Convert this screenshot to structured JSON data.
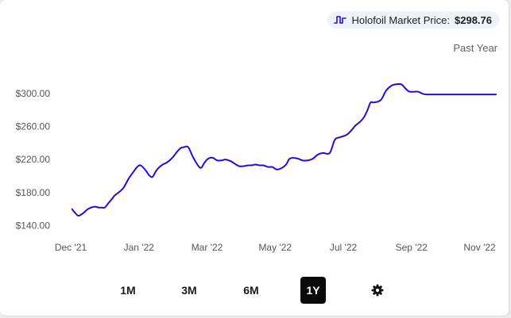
{
  "legend": {
    "label": "Holofoil Market Price:",
    "price": "$298.76",
    "icon": "line-chart-icon"
  },
  "period_label": "Past Year",
  "range_buttons": [
    {
      "label": "1M",
      "active": false
    },
    {
      "label": "3M",
      "active": false
    },
    {
      "label": "6M",
      "active": false
    },
    {
      "label": "1Y",
      "active": true
    }
  ],
  "settings_icon": "gear-icon",
  "colors": {
    "line": "#2a0ad6",
    "active_button_bg": "#0a0a0a",
    "legend_bg": "#eef2fb"
  },
  "chart_data": {
    "type": "line",
    "title": "",
    "xlabel": "",
    "ylabel": "",
    "y_ticks": [
      {
        "value": 140,
        "label": "$140.00"
      },
      {
        "value": 180,
        "label": "$180.00"
      },
      {
        "value": 220,
        "label": "$220.00"
      },
      {
        "value": 260,
        "label": "$260.00"
      },
      {
        "value": 300,
        "label": "$300.00"
      }
    ],
    "x_ticks": [
      {
        "value": 0,
        "label": "Dec '21"
      },
      {
        "value": 2,
        "label": "Jan '22"
      },
      {
        "value": 4,
        "label": "Mar '22"
      },
      {
        "value": 6,
        "label": "May '22"
      },
      {
        "value": 8,
        "label": "Jul '22"
      },
      {
        "value": 10,
        "label": "Sep '22"
      },
      {
        "value": 12,
        "label": "Nov '22"
      }
    ],
    "xlim": [
      0,
      12.5
    ],
    "ylim": [
      132,
      318
    ],
    "grid": false,
    "series": [
      {
        "x": [
          0.04,
          0.14,
          0.23,
          0.36,
          0.5,
          0.68,
          0.82,
          0.9,
          1.0,
          1.1,
          1.2,
          1.3,
          1.4,
          1.55,
          1.7,
          1.82,
          1.95,
          2.05,
          2.2,
          2.3,
          2.4,
          2.5,
          2.58,
          2.7,
          2.8,
          2.9,
          3.0,
          3.13,
          3.23,
          3.32,
          3.45,
          3.6,
          3.8,
          3.92,
          4.0,
          4.08,
          4.18,
          4.3,
          4.42,
          4.55,
          4.7,
          4.85,
          4.95,
          5.07,
          5.2,
          5.3,
          5.42,
          5.55,
          5.65,
          5.8,
          5.92,
          6.05,
          6.2,
          6.32,
          6.42,
          6.55,
          6.68,
          6.8,
          6.95,
          7.1,
          7.25,
          7.4,
          7.6,
          7.75,
          7.9,
          8.1,
          8.25,
          8.35,
          8.5,
          8.6,
          8.7,
          8.8,
          8.9,
          9.1,
          9.25,
          9.4,
          9.55,
          9.7,
          9.82,
          9.9,
          9.95,
          10.05,
          10.2,
          10.3,
          10.42,
          10.55,
          10.65,
          10.75,
          10.85,
          10.92,
          11.05,
          11.15,
          11.25,
          11.35,
          11.42,
          11.48,
          11.55,
          11.6,
          11.68,
          11.75,
          11.85,
          11.95,
          12.05,
          12.2,
          12.3,
          12.4,
          12.48
        ],
        "y": [
          160,
          155,
          152,
          155,
          160,
          163,
          162,
          162,
          162,
          167,
          172,
          177,
          180,
          186,
          197,
          204,
          211,
          213,
          207,
          201,
          199,
          206,
          210,
          214,
          216,
          219,
          223,
          230,
          234,
          235,
          235,
          222,
          210,
          216,
          220,
          222,
          222,
          219,
          219,
          220,
          218,
          214,
          212,
          212,
          213,
          213,
          214,
          213,
          213,
          211,
          211,
          208,
          210,
          214,
          221,
          222,
          221,
          219,
          219,
          221,
          226,
          228,
          228,
          244,
          247,
          250,
          256,
          261,
          266,
          271,
          279,
          289,
          289,
          292,
          303,
          309,
          311,
          311,
          306,
          303,
          302,
          302,
          302,
          300,
          298.76,
          298.76,
          298.76,
          298.76,
          298.76,
          298.76,
          298.76,
          298.76,
          298.76,
          298.76,
          298.76,
          298.76,
          298.76,
          298.76,
          298.76,
          298.76,
          298.76,
          298.76,
          298.76,
          298.76,
          298.76,
          298.76,
          298.76
        ]
      }
    ]
  }
}
